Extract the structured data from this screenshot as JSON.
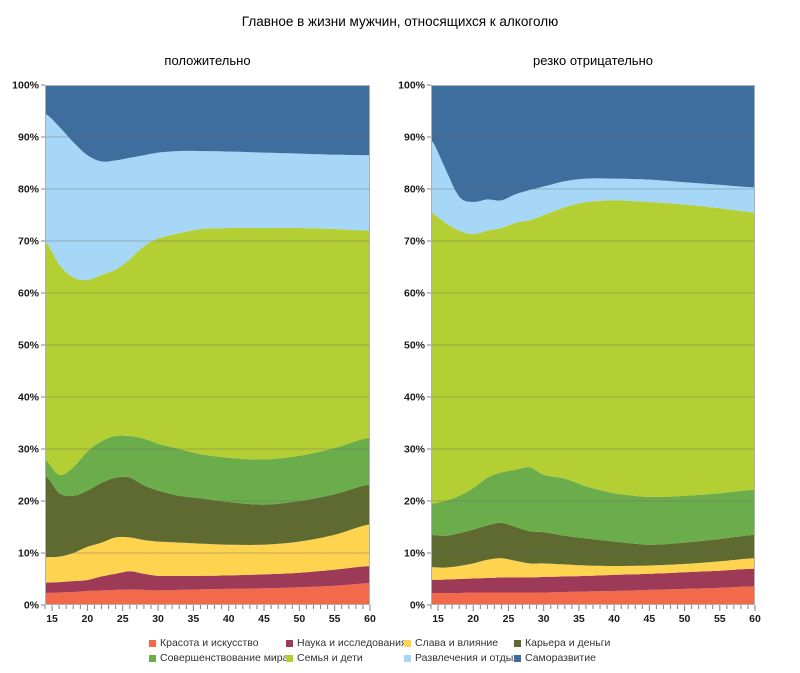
{
  "title": "Главное в жизни мужчин, относящихся к алкоголю",
  "style": {
    "grid_color": "#666666",
    "frame_color": "#b0b0b0",
    "tick_color": "#808080",
    "axis_text_color": "#1a1a1a",
    "legend_text_color": "#333333",
    "background": "#ffffff"
  },
  "chart_data": {
    "type": "area",
    "stacked_percent": true,
    "grid": true,
    "legend_position": "bottom",
    "x_range": [
      14,
      60
    ],
    "y_range": [
      0,
      100
    ],
    "x": [
      14,
      16,
      18,
      20,
      22,
      24,
      26,
      28,
      30,
      33,
      36,
      40,
      45,
      50,
      55,
      60
    ],
    "x_tick_labels": [
      "15",
      "20",
      "25",
      "30",
      "35",
      "40",
      "45",
      "50",
      "55",
      "60"
    ],
    "x_tick_values": [
      15,
      20,
      25,
      30,
      35,
      40,
      45,
      50,
      55,
      60
    ],
    "x_minor_tick_step": 1,
    "y_tick_values": [
      0,
      10,
      20,
      30,
      40,
      50,
      60,
      70,
      80,
      90,
      100
    ],
    "y_tick_labels": [
      "0%",
      "10%",
      "20%",
      "30%",
      "40%",
      "50%",
      "60%",
      "70%",
      "80%",
      "90%",
      "100%"
    ],
    "charts": [
      {
        "subtitle": "положительно",
        "series": [
          {
            "name": "Красота и искусство",
            "color": "#f2694b",
            "values": [
              2.3,
              2.4,
              2.5,
              2.7,
              2.8,
              2.9,
              3.0,
              2.9,
              2.8,
              2.9,
              3.0,
              3.1,
              3.2,
              3.4,
              3.7,
              4.2
            ]
          },
          {
            "name": "Наука и исследования",
            "color": "#9c3a57",
            "values": [
              2.0,
              2.0,
              2.1,
              2.1,
              2.7,
              3.1,
              3.5,
              3.1,
              2.8,
              2.7,
              2.6,
              2.6,
              2.7,
              2.8,
              3.1,
              3.3
            ]
          },
          {
            "name": "Слава и влияние",
            "color": "#fed34f",
            "values": [
              4.9,
              4.9,
              5.4,
              6.4,
              6.5,
              7.0,
              6.5,
              6.5,
              6.6,
              6.4,
              6.2,
              5.9,
              5.7,
              6.0,
              6.7,
              8.0
            ]
          },
          {
            "name": "Карьера и деньги",
            "color": "#5e6a30",
            "values": [
              15.8,
              12.2,
              11.0,
              10.8,
              11.5,
              11.5,
              11.5,
              10.5,
              9.8,
              9.0,
              8.7,
              8.2,
              7.7,
              7.8,
              7.8,
              7.7
            ]
          },
          {
            "name": "Совершенствование мира",
            "color": "#6bac4b",
            "values": [
              3.0,
              3.5,
              5.5,
              7.5,
              8.0,
              8.0,
              8.0,
              9.0,
              9.0,
              9.0,
              8.5,
              8.5,
              8.7,
              8.7,
              8.9,
              9.0
            ]
          },
          {
            "name": "Семья и дети",
            "color": "#b4cf33",
            "values": [
              42.0,
              40.5,
              36.5,
              33.0,
              32.0,
              32.0,
              34.0,
              37.0,
              39.5,
              41.5,
              43.3,
              44.2,
              44.5,
              43.8,
              42.1,
              39.8
            ]
          },
          {
            "name": "Развлечения и отдых",
            "color": "#a7d7f6",
            "values": [
              24.5,
              26.5,
              26.0,
              24.0,
              21.8,
              21.0,
              19.5,
              17.5,
              16.5,
              15.8,
              15.0,
              14.7,
              14.5,
              14.3,
              14.3,
              14.5
            ]
          },
          {
            "name": "Саморазвитие",
            "color": "#3d6e9e",
            "values": [
              5.5,
              8.0,
              11.0,
              13.5,
              14.7,
              14.5,
              14.0,
              13.5,
              13.0,
              12.7,
              12.7,
              12.8,
              13.0,
              13.2,
              13.4,
              13.5
            ]
          }
        ]
      },
      {
        "subtitle": "резко отрицательно",
        "series": [
          {
            "name": "Красота и искусство",
            "color": "#f2694b",
            "values": [
              2.3,
              2.3,
              2.3,
              2.4,
              2.4,
              2.4,
              2.4,
              2.4,
              2.4,
              2.5,
              2.6,
              2.7,
              2.9,
              3.1,
              3.3,
              3.6
            ]
          },
          {
            "name": "Наука и исследования",
            "color": "#9c3a57",
            "values": [
              2.5,
              2.6,
              2.7,
              2.7,
              2.8,
              2.9,
              2.9,
              2.9,
              3.0,
              3.0,
              3.0,
              3.1,
              3.1,
              3.2,
              3.3,
              3.4
            ]
          },
          {
            "name": "Слава и влияние",
            "color": "#fed34f",
            "values": [
              2.5,
              2.3,
              2.5,
              2.9,
              3.5,
              3.7,
              3.2,
              2.7,
              2.6,
              2.3,
              2.0,
              1.7,
              1.6,
              1.6,
              1.8,
              2.0
            ]
          },
          {
            "name": "Карьера и деньги",
            "color": "#5e6a30",
            "values": [
              6.2,
              6.1,
              6.3,
              6.5,
              6.6,
              6.8,
              6.5,
              6.2,
              6.0,
              5.5,
              5.2,
              4.7,
              4.0,
              4.1,
              4.3,
              4.5
            ]
          },
          {
            "name": "Совершенствование мира",
            "color": "#6bac4b",
            "values": [
              6.0,
              6.7,
              7.2,
              8.0,
              9.2,
              9.7,
              11.0,
              12.3,
              11.0,
              11.0,
              10.0,
              9.3,
              9.2,
              9.0,
              8.8,
              8.7
            ]
          },
          {
            "name": "Семья и дети",
            "color": "#b4cf33",
            "values": [
              56.0,
              53.5,
              51.0,
              48.8,
              47.5,
              47.0,
              47.5,
              47.5,
              50.0,
              52.2,
              54.7,
              56.3,
              56.7,
              56.0,
              54.8,
              53.3
            ]
          },
          {
            "name": "Развлечения и отдых",
            "color": "#a7d7f6",
            "values": [
              14.0,
              10.5,
              6.5,
              6.2,
              6.0,
              5.3,
              5.5,
              5.8,
              5.5,
              5.0,
              4.5,
              4.2,
              4.3,
              4.3,
              4.5,
              4.8
            ]
          },
          {
            "name": "Саморазвитие",
            "color": "#3d6e9e",
            "values": [
              10.5,
              16.0,
              21.5,
              22.5,
              22.0,
              22.2,
              21.0,
              20.2,
              19.5,
              18.5,
              18.0,
              18.0,
              18.2,
              18.7,
              19.2,
              19.7
            ]
          }
        ]
      }
    ]
  }
}
